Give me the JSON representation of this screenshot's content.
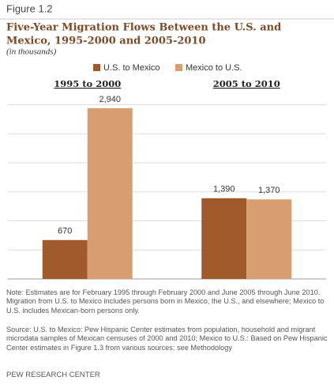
{
  "chart_data": {
    "type": "bar",
    "figure": "Figure 1.2",
    "title": [
      "Five-Year Migration Flows Between the U.S. and",
      "Mexico, 1995-2000  and 2005-2010"
    ],
    "subtitle": "(in thousands)",
    "categories": [
      "1995 to 2000",
      "2005 to 2010"
    ],
    "series": [
      {
        "name": "U.S. to Mexico",
        "color": "#a05a2c",
        "values": [
          670,
          1390
        ],
        "value_labels": [
          "670",
          "1,390"
        ]
      },
      {
        "name": "Mexico to U.S.",
        "color": "#d99e70",
        "values": [
          2940,
          1370
        ],
        "value_labels": [
          "2,940",
          "1,370"
        ]
      }
    ],
    "ylim": [
      0,
      3000
    ],
    "yticks": [
      0,
      500,
      1000,
      1500,
      2000,
      2500,
      3000
    ],
    "grid": true
  },
  "note": "Note: Estimates are for February 1995 through February 2000 and June 2005 through June 2010. Migration from U.S. to Mexico includes persons born in Mexico, the U.S., and elsewhere; Mexico to U.S. includes Mexican-born persons only.",
  "source": "Source: U.S. to Mexico: Pew Hispanic Center estimates from population, household and migrant microdata samples of Mexican censuses of 2000 and 2010; Mexico to U.S.: Based on Pew Hispanic Center estimates in Figure 1.3 from various sources; see Methodology",
  "footer": "PEW RESEARCH CENTER"
}
